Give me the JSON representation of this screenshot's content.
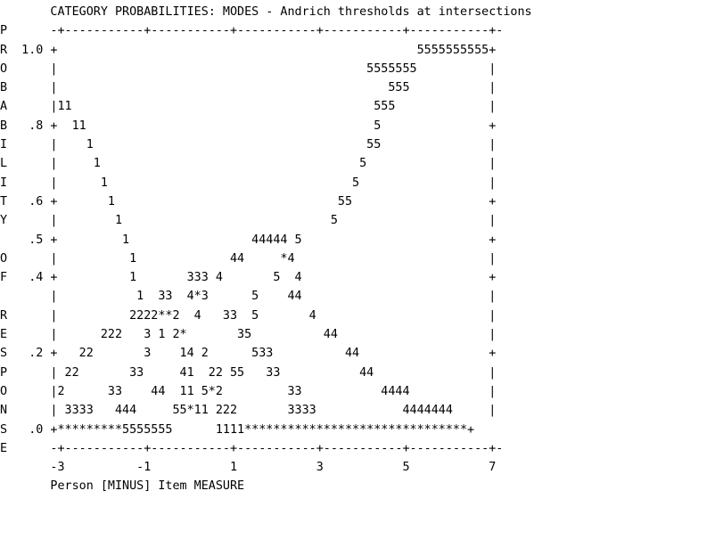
{
  "chart_data": {
    "type": "line",
    "title": "CATEGORY PROBABILITIES: MODES - Andrich thresholds at intersections",
    "xlabel": "Person [MINUS] Item MEASURE",
    "ylabel": "PROBABILITY OF RESPONSE",
    "xlim": [
      -3,
      7
    ],
    "ylim": [
      0,
      1
    ],
    "x_ticks": [
      "-3",
      "-1",
      "1",
      "3",
      "5",
      "7"
    ],
    "y_ticks": [
      "1.0",
      ".8",
      ".6",
      ".5",
      ".4",
      ".2",
      ".0"
    ],
    "series": [
      {
        "name": "1"
      },
      {
        "name": "2"
      },
      {
        "name": "3"
      },
      {
        "name": "4"
      },
      {
        "name": "5"
      }
    ],
    "plot_lines": [
      "       CATEGORY PROBABILITIES: MODES - Andrich thresholds at intersections",
      "P      -+-----------+-----------+-----------+-----------+-----------+-",
      "R  1.0 +                                                  5555555555+",
      "O      |                                           5555555          |",
      "B      |                                              555           |",
      "A      |11                                          555             |",
      "B   .8 +  11                                        5               +",
      "I      |    1                                      55               |",
      "L      |     1                                    5                 |",
      "I      |      1                                  5                  |",
      "T   .6 +       1                               55                   +",
      "Y      |        1                             5                     |",
      "    .5 +         1                 44444 5                          +",
      "O      |          1             44     *4                           |",
      "F   .4 +          1       333 4       5  4                          +",
      "       |           1  33  4*3      5    44                          |",
      "R      |          2222**2  4   33  5       4                        |",
      "E      |      222   3 1 2*       35          44                     |",
      "S   .2 +   22       3    14 2      533          44                  +",
      "P      | 22       33     41  22 55   33           44                |",
      "O      |2      33    44  11 5*2         33           4444           |",
      "N      | 3333   444     55*11 222       3333            4444444     |",
      "S   .0 +*********5555555      1111*******************************+",
      "E      -+-----------+-----------+-----------+-----------+-----------+-",
      "       -3          -1           1           3           5           7",
      "       Person [MINUS] Item MEASURE"
    ]
  }
}
